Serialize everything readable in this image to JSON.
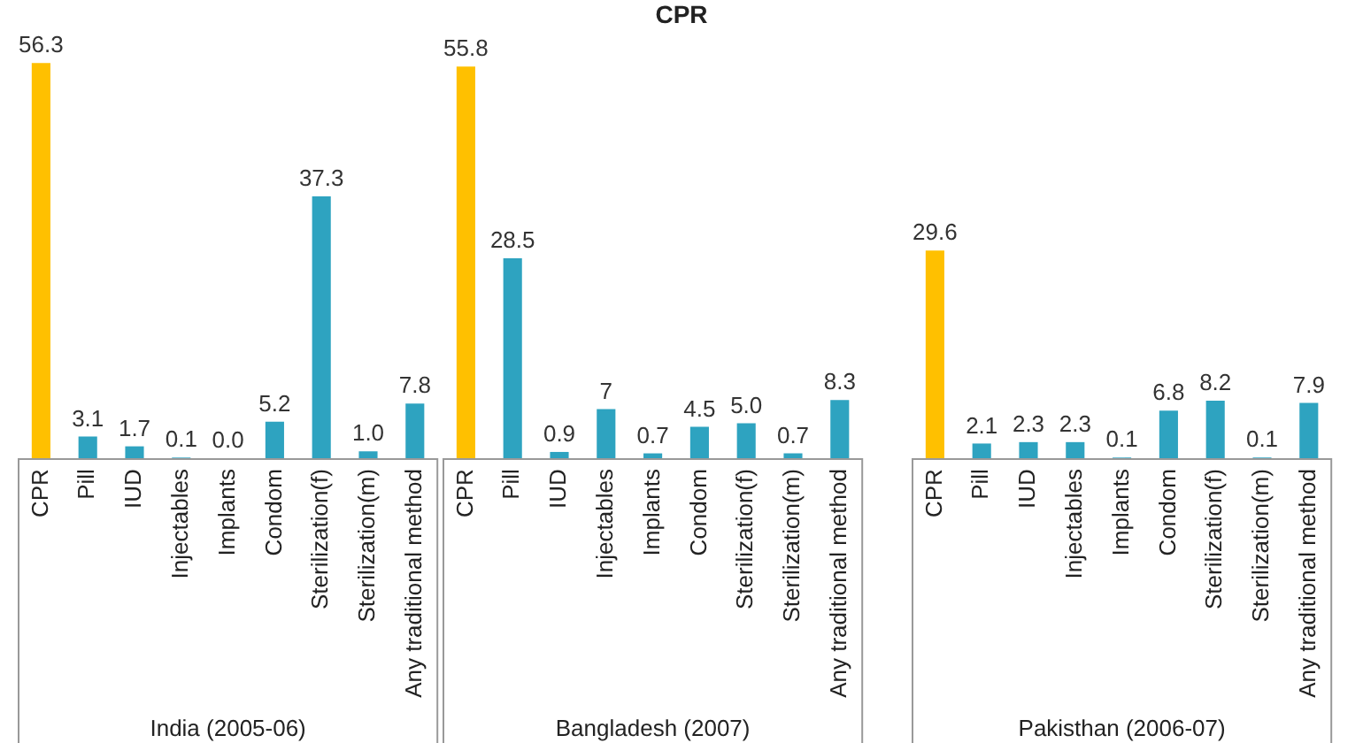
{
  "chart_data": [
    {
      "type": "bar",
      "xlabel": "India (2005-06)",
      "categories": [
        "CPR",
        "Pill",
        "IUD",
        "Injectables",
        "Implants",
        "Condom",
        "Sterilization(f)",
        "Sterilization(m)",
        "Any traditional method"
      ],
      "values": [
        56.3,
        3.1,
        1.7,
        0.1,
        0.0,
        5.2,
        37.3,
        1.0,
        7.8
      ],
      "value_labels": [
        "56.3",
        "3.1",
        "1.7",
        "0.1",
        "0.0",
        "5.2",
        "37.3",
        "1.0",
        "7.8"
      ],
      "colors": [
        "#ffc000",
        "#2ea3c0",
        "#2ea3c0",
        "#2ea3c0",
        "#2ea3c0",
        "#2ea3c0",
        "#2ea3c0",
        "#2ea3c0",
        "#2ea3c0"
      ],
      "tick_labels": "x",
      "grid": false,
      "legend": false
    },
    {
      "type": "bar",
      "title": "CPR",
      "xlabel": "Bangladesh (2007)",
      "categories": [
        "CPR",
        "Pill",
        "IUD",
        "Injectables",
        "Implants",
        "Condom",
        "Sterilization(f)",
        "Sterilization(m)",
        "Any traditional method"
      ],
      "values": [
        55.8,
        28.5,
        0.9,
        7,
        0.7,
        4.5,
        5.0,
        0.7,
        8.3
      ],
      "value_labels": [
        "55.8",
        "28.5",
        "0.9",
        "7",
        "0.7",
        "4.5",
        "5.0",
        "0.7",
        "8.3"
      ],
      "colors": [
        "#ffc000",
        "#2ea3c0",
        "#2ea3c0",
        "#2ea3c0",
        "#2ea3c0",
        "#2ea3c0",
        "#2ea3c0",
        "#2ea3c0",
        "#2ea3c0"
      ],
      "tick_labels": "x",
      "grid": false,
      "legend": false
    },
    {
      "type": "bar",
      "xlabel": "Pakisthan (2006-07)",
      "categories": [
        "CPR",
        "Pill",
        "IUD",
        "Injectables",
        "Implants",
        "Condom",
        "Sterilization(f)",
        "Sterilization(m)",
        "Any traditional method"
      ],
      "values": [
        29.6,
        2.1,
        2.3,
        2.3,
        0.1,
        6.8,
        8.2,
        0.1,
        7.9
      ],
      "value_labels": [
        "29.6",
        "2.1",
        "2.3",
        "2.3",
        "0.1",
        "6.8",
        "8.2",
        "0.1",
        "7.9"
      ],
      "colors": [
        "#ffc000",
        "#2ea3c0",
        "#2ea3c0",
        "#2ea3c0",
        "#2ea3c0",
        "#2ea3c0",
        "#2ea3c0",
        "#2ea3c0",
        "#2ea3c0"
      ],
      "tick_labels": "x",
      "grid": false,
      "legend": false
    }
  ]
}
